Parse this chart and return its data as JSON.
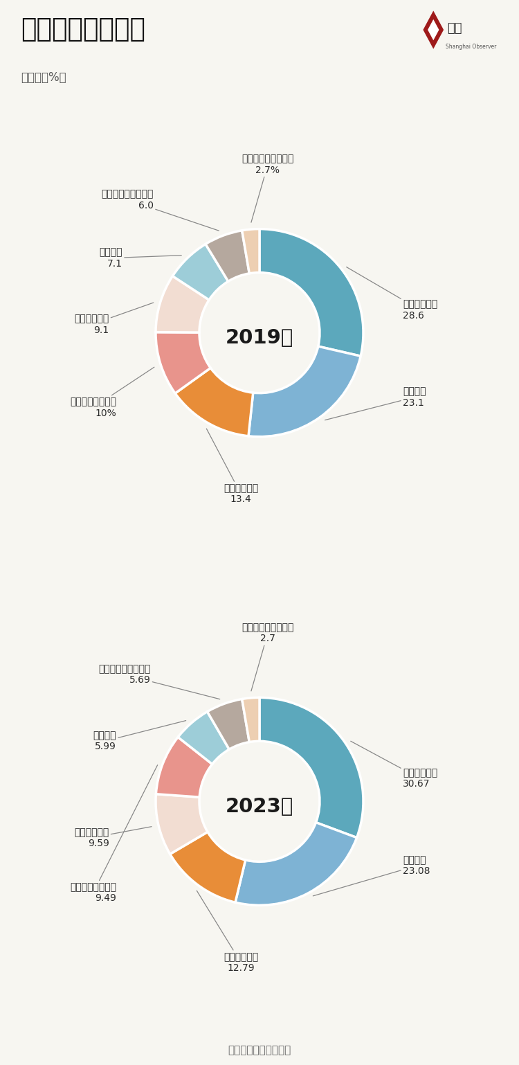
{
  "title": "食品开销占比增多",
  "subtitle": "（单位：%）",
  "footer": "数据来源：国家统计局",
  "bg_color": "#f7f6f1",
  "charts": [
    {
      "year": "2019年",
      "categories": [
        "食品烟酒支出",
        "居住支出",
        "交通通信支出",
        "教育文化娱乐支出",
        "医疗保健支出",
        "衣着支出",
        "生活用品及服务支出",
        "其他用品及服务支出"
      ],
      "values": [
        28.6,
        23.1,
        13.4,
        10.0,
        9.1,
        7.1,
        6.0,
        2.7
      ],
      "colors": [
        "#5ca8bc",
        "#7eb3d4",
        "#e88d38",
        "#e8948c",
        "#f2ddd2",
        "#9dcdd8",
        "#b5a89e",
        "#edcfb2"
      ],
      "label_values": [
        "28.6",
        "23.1",
        "13.4",
        "10%",
        "9.1",
        "7.1",
        "6.0",
        "2.7%"
      ],
      "label_offsets": [
        [
          1.38,
          0.22,
          "left"
        ],
        [
          1.38,
          -0.62,
          "left"
        ],
        [
          -0.18,
          -1.55,
          "center"
        ],
        [
          -1.38,
          -0.72,
          "right"
        ],
        [
          -1.45,
          0.08,
          "right"
        ],
        [
          -1.32,
          0.72,
          "right"
        ],
        [
          -1.02,
          1.28,
          "right"
        ],
        [
          0.08,
          1.62,
          "center"
        ]
      ]
    },
    {
      "year": "2023年",
      "categories": [
        "食品烟酒支出",
        "居住支出",
        "交通通信支出",
        "医疗保健支出",
        "教育文化娱乐支出",
        "衣着支出",
        "生活用品及服务支出",
        "其他用品及服务支出"
      ],
      "values": [
        30.67,
        23.08,
        12.79,
        9.59,
        9.49,
        5.99,
        5.69,
        2.7
      ],
      "colors": [
        "#5ca8bc",
        "#7eb3d4",
        "#e88d38",
        "#f2ddd2",
        "#e8948c",
        "#9dcdd8",
        "#b5a89e",
        "#edcfb2"
      ],
      "label_values": [
        "30.67",
        "23.08",
        "12.79",
        "9.59",
        "9.49",
        "5.99",
        "5.69",
        "2.7"
      ],
      "label_offsets": [
        [
          1.38,
          0.22,
          "left"
        ],
        [
          1.38,
          -0.62,
          "left"
        ],
        [
          -0.18,
          -1.55,
          "center"
        ],
        [
          -1.45,
          -0.35,
          "right"
        ],
        [
          -1.38,
          -0.88,
          "right"
        ],
        [
          -1.38,
          0.58,
          "right"
        ],
        [
          -1.05,
          1.22,
          "right"
        ],
        [
          0.08,
          1.62,
          "center"
        ]
      ]
    }
  ]
}
